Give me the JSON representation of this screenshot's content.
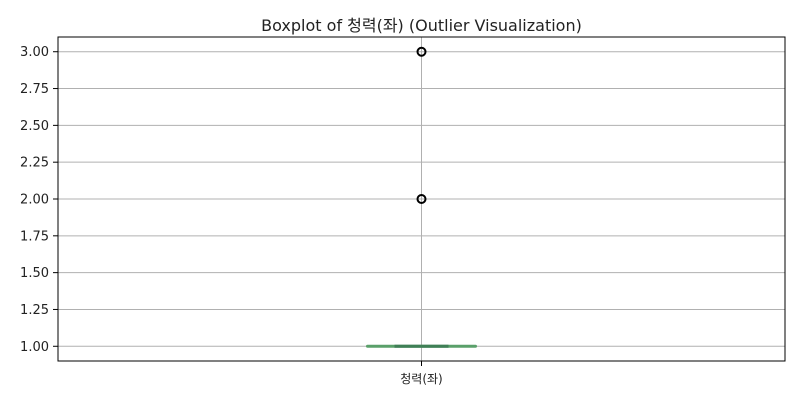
{
  "chart_data": {
    "type": "boxplot",
    "title": "Boxplot of 청력(좌) (Outlier Visualization)",
    "xlabel": "",
    "ylabel": "",
    "categories": [
      "청력(좌)"
    ],
    "ylim": [
      0.9,
      3.1
    ],
    "y_ticks": [
      1.0,
      1.25,
      1.5,
      1.75,
      2.0,
      2.25,
      2.5,
      2.75,
      3.0
    ],
    "y_tick_labels": [
      "1.00",
      "1.25",
      "1.50",
      "1.75",
      "2.00",
      "2.25",
      "2.50",
      "2.75",
      "3.00"
    ],
    "grid": true,
    "boxes": [
      {
        "category": "청력(좌)",
        "min": 1.0,
        "q1": 1.0,
        "median": 1.0,
        "q3": 1.0,
        "max": 1.0,
        "outliers": [
          2.0,
          3.0
        ]
      }
    ],
    "colors": {
      "box": "#5aa06a",
      "median": "#3f7f56",
      "outlier": "#000000",
      "grid": "#b0b0b0",
      "axis": "#000000"
    }
  }
}
